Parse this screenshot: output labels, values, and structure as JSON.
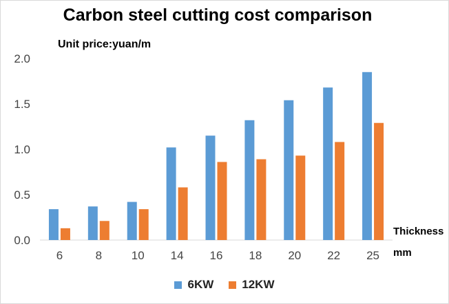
{
  "chart_data": {
    "type": "bar",
    "title": "Carbon steel cutting cost comparison",
    "ylabel": "Unit price:yuan/m",
    "xlabel": [
      "Thickness",
      "mm"
    ],
    "categories": [
      "6",
      "8",
      "10",
      "14",
      "16",
      "18",
      "20",
      "22",
      "25"
    ],
    "ylim": [
      0,
      2.0
    ],
    "yticks": [
      "0.0",
      "0.5",
      "1.0",
      "1.5",
      "2.0"
    ],
    "series": [
      {
        "name": "6KW",
        "color": "#5b9bd5",
        "values": [
          0.34,
          0.37,
          0.42,
          1.02,
          1.15,
          1.32,
          1.54,
          1.68,
          1.85
        ]
      },
      {
        "name": "12KW",
        "color": "#ed7d31",
        "values": [
          0.13,
          0.21,
          0.34,
          0.58,
          0.86,
          0.89,
          0.93,
          1.08,
          1.29
        ]
      }
    ],
    "grid": false,
    "legend": "bottom"
  }
}
